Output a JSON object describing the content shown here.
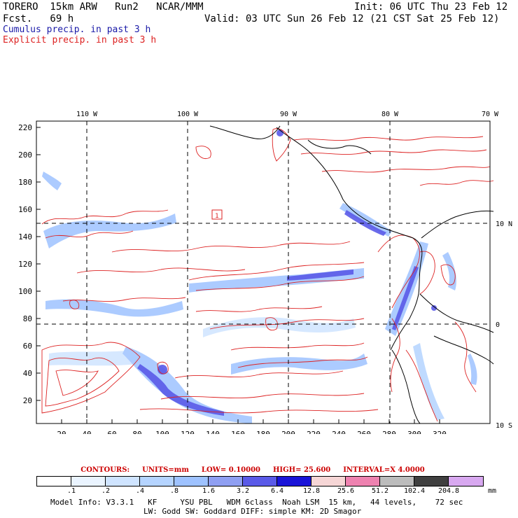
{
  "header": {
    "model": "TORERO  15km ARW   Run2   NCAR/MMM",
    "forecast": "Fcst.   69 h",
    "init": "Init: 06 UTC Thu 23 Feb 12",
    "valid": "Valid: 03 UTC Sun 26 Feb 12 (21 CST Sat 25 Feb 12)",
    "legend_cumulus": "Cumulus precip. in past 3 h",
    "legend_explicit": "Explicit precip. in past 3 h"
  },
  "map": {
    "lon_labels": [
      "110 W",
      "100 W",
      "90 W",
      "80 W",
      "70 W"
    ],
    "lat_labels": [
      "10 N",
      "0",
      "10 S"
    ],
    "x_ticks": [
      "20",
      "40",
      "60",
      "80",
      "100",
      "120",
      "140",
      "160",
      "180",
      "200",
      "220",
      "240",
      "260",
      "280",
      "300",
      "320"
    ],
    "y_ticks": [
      "220",
      "200",
      "180",
      "160",
      "140",
      "120",
      "100",
      "80",
      "60",
      "40",
      "20"
    ],
    "marker": "1"
  },
  "contours": {
    "label": "CONTOURS:",
    "units": "UNITS=mm",
    "low": "LOW= 0.10000",
    "high": "HIGH=  25.600",
    "interval": "INTERVAL=X  4.0000"
  },
  "colorbar": {
    "levels": [
      ".1",
      ".2",
      ".4",
      ".8",
      "1.6",
      "3.2",
      "6.4",
      "12.8",
      "25.6",
      "51.2",
      "102.4",
      "204.8"
    ],
    "unit": "mm",
    "colors": [
      "#ffffff",
      "#eaf4ff",
      "#cfe4ff",
      "#b5d4ff",
      "#9ec2ff",
      "#8f9ff2",
      "#5a5ae8",
      "#1a14d8",
      "#f6d6d6",
      "#ee82b0",
      "#bcbcbc",
      "#404040",
      "#d8a8f0"
    ]
  },
  "footer": {
    "line1": "Model Info: V3.3.1   KF     YSU PBL   WDM 6class  Noah LSM  15 km,   44 levels,    72 sec",
    "line2": "LW: Godd SW: Goddard DIFF: simple KM: 2D Smagor"
  }
}
